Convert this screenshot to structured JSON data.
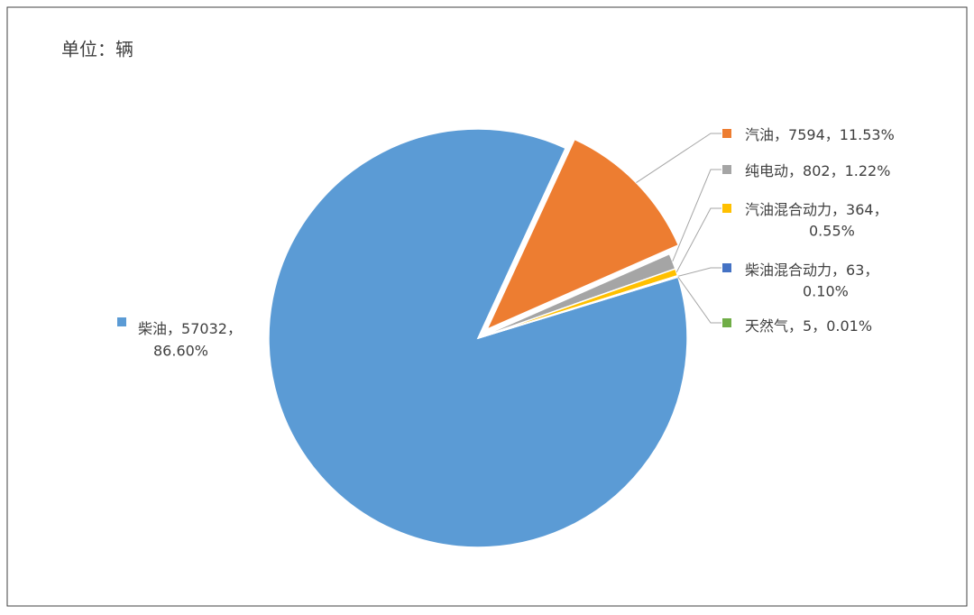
{
  "chart_data": {
    "type": "pie",
    "title": "单位：辆",
    "categories": [
      "柴油",
      "汽油",
      "纯电动",
      "汽油混合动力",
      "柴油混合动力",
      "天然气"
    ],
    "values": [
      57032,
      7594,
      802,
      364,
      63,
      5
    ],
    "percents": [
      86.6,
      11.53,
      1.22,
      0.55,
      0.1,
      0.01
    ],
    "percent_labels": [
      "86.60%",
      "11.53%",
      "1.22%",
      "0.55%",
      "0.10%",
      "0.01%"
    ],
    "label_separator": "，",
    "colors": [
      "#5b9bd5",
      "#ed7d31",
      "#a5a5a5",
      "#ffc000",
      "#4472c4",
      "#70ad47"
    ]
  }
}
